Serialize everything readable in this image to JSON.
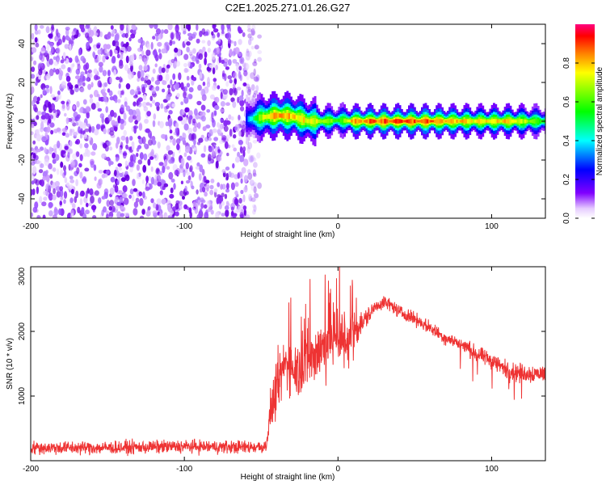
{
  "chart_data": [
    {
      "type": "heatmap",
      "title": "C2E1.2025.271.01.26.G27",
      "xlabel": "Height of straight line (km)",
      "ylabel": "Frequency (Hz)",
      "xlim": [
        -200,
        135
      ],
      "ylim": [
        -50,
        50
      ],
      "xticks": [
        -200,
        -100,
        0,
        100
      ],
      "xtick_labels": [
        "-200",
        "-100",
        "0",
        "100"
      ],
      "yticks": [
        -40,
        -20,
        0,
        20,
        40
      ],
      "ytick_labels": [
        "-40",
        "-20",
        "0",
        "20",
        "40"
      ],
      "noise_region_x": [
        -200,
        -53
      ],
      "signal_trace": {
        "x": [
          -60,
          -50,
          -40,
          -30,
          -20,
          -10,
          0,
          10,
          30,
          60,
          90,
          110,
          135
        ],
        "y": [
          1,
          2,
          3,
          2.5,
          0,
          0,
          0.5,
          0,
          0,
          0,
          0,
          0,
          0
        ],
        "strength": [
          0.3,
          0.75,
          0.9,
          0.85,
          0.8,
          0.75,
          0.6,
          0.9,
          0.95,
          0.95,
          0.8,
          0.85,
          0.6
        ]
      },
      "colorbar": {
        "label": "Normalized spectral amplitude",
        "range": [
          0,
          1
        ],
        "ticks": [
          0.0,
          0.2,
          0.4,
          0.6,
          0.8
        ],
        "tick_labels": [
          "0.0",
          "0.2",
          "0.4",
          "0.6",
          "0.8"
        ]
      }
    },
    {
      "type": "line",
      "title": "",
      "xlabel": "Height of straight line (km)",
      "ylabel": "SNR (10 * v/v)",
      "xlim": [
        -200,
        135
      ],
      "ylim": [
        0,
        3000
      ],
      "xticks": [
        -200,
        -100,
        0,
        100
      ],
      "xtick_labels": [
        "-200",
        "-100",
        "0",
        "100"
      ],
      "yticks": [
        1000,
        2000,
        3000
      ],
      "ytick_labels": [
        "1000",
        "2000",
        "3000"
      ],
      "color": "#ee3333",
      "series": [
        {
          "name": "SNR",
          "x": [
            -200,
            -150,
            -100,
            -60,
            -47,
            -44,
            -40,
            -35,
            -30,
            -25,
            -20,
            -15,
            -10,
            -5,
            0,
            5,
            10,
            15,
            20,
            25,
            30,
            35,
            40,
            50,
            60,
            70,
            80,
            90,
            100,
            110,
            120,
            135
          ],
          "y": [
            200,
            200,
            220,
            210,
            220,
            700,
            1000,
            1500,
            1500,
            1400,
            1550,
            1650,
            1750,
            1900,
            2000,
            1800,
            2000,
            2100,
            2250,
            2400,
            2450,
            2400,
            2300,
            2200,
            2050,
            1900,
            1800,
            1650,
            1550,
            1400,
            1350,
            1350
          ],
          "noise": [
            150,
            150,
            150,
            150,
            150,
            400,
            600,
            600,
            650,
            650,
            700,
            700,
            750,
            800,
            850,
            700,
            500,
            300,
            200,
            150,
            150,
            150,
            150,
            150,
            150,
            160,
            170,
            180,
            200,
            220,
            220,
            200
          ]
        }
      ]
    }
  ]
}
